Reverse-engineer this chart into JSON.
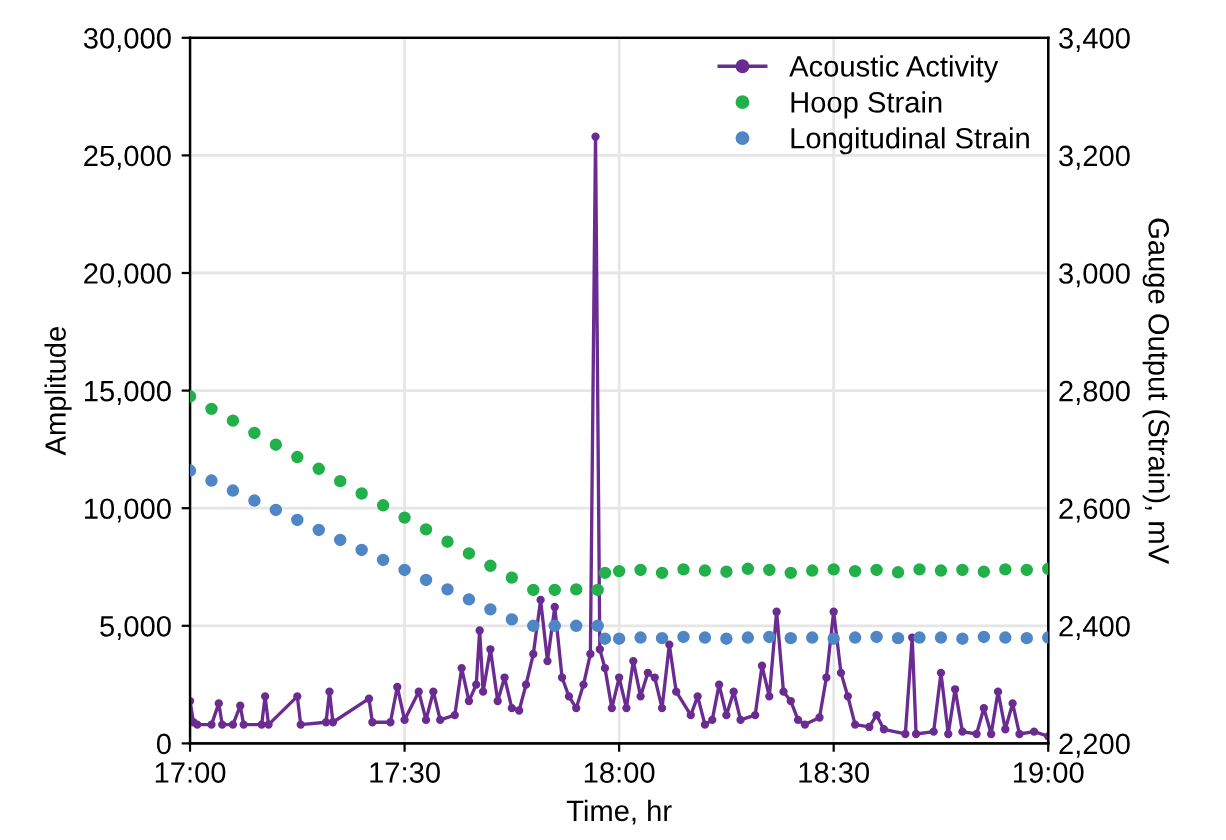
{
  "chart_data": {
    "type": "line",
    "xlabel": "Time, hr",
    "ylabel": "Amplitude",
    "y2label": "Gauge Output (Strain), mV",
    "xlim": [
      17,
      19
    ],
    "xticks": [
      {
        "value": 17,
        "label": "17:00"
      },
      {
        "value": 17.5,
        "label": "17:30"
      },
      {
        "value": 18,
        "label": "18:00"
      },
      {
        "value": 18.5,
        "label": "18:30"
      },
      {
        "value": 19,
        "label": "19:00"
      }
    ],
    "ylim": [
      0,
      30000
    ],
    "yticks": [
      {
        "value": 0,
        "label": "0"
      },
      {
        "value": 5000,
        "label": "5,000"
      },
      {
        "value": 10000,
        "label": "10,000"
      },
      {
        "value": 15000,
        "label": "15,000"
      },
      {
        "value": 20000,
        "label": "20,000"
      },
      {
        "value": 25000,
        "label": "25,000"
      },
      {
        "value": 30000,
        "label": "30,000"
      }
    ],
    "y2lim": [
      2200,
      3400
    ],
    "y2ticks": [
      {
        "value": 2200,
        "label": "2,200"
      },
      {
        "value": 2400,
        "label": "2,400"
      },
      {
        "value": 2600,
        "label": "2,600"
      },
      {
        "value": 2800,
        "label": "2,800"
      },
      {
        "value": 3000,
        "label": "3,000"
      },
      {
        "value": 3200,
        "label": "3,200"
      },
      {
        "value": 3400,
        "label": "3,400"
      }
    ],
    "grid": true,
    "legend": "top right",
    "series": [
      {
        "name": "Acoustic Activity",
        "marker": "circle",
        "color": "#6a2c91",
        "x": [
          17.0,
          17.008,
          17.017,
          17.05,
          17.067,
          17.075,
          17.1,
          17.117,
          17.125,
          17.167,
          17.175,
          17.183,
          17.25,
          17.258,
          17.317,
          17.325,
          17.333,
          17.417,
          17.425,
          17.467,
          17.483,
          17.5,
          17.533,
          17.55,
          17.567,
          17.583,
          17.617,
          17.633,
          17.65,
          17.667,
          17.675,
          17.683,
          17.7,
          17.717,
          17.733,
          17.75,
          17.767,
          17.783,
          17.8,
          17.817,
          17.833,
          17.85,
          17.867,
          17.883,
          17.9,
          17.917,
          17.933,
          17.945,
          17.955,
          17.967,
          17.983,
          18.0,
          18.017,
          18.033,
          18.05,
          18.067,
          18.083,
          18.1,
          18.117,
          18.133,
          18.167,
          18.183,
          18.2,
          18.217,
          18.233,
          18.25,
          18.267,
          18.283,
          18.317,
          18.333,
          18.35,
          18.367,
          18.383,
          18.4,
          18.417,
          18.433,
          18.467,
          18.483,
          18.5,
          18.517,
          18.533,
          18.55,
          18.583,
          18.6,
          18.617,
          18.667,
          18.683,
          18.692,
          18.733,
          18.75,
          18.767,
          18.783,
          18.8,
          18.833,
          18.85,
          18.867,
          18.883,
          18.9,
          18.917,
          18.933,
          18.967,
          19.0
        ],
        "values": [
          1800,
          900,
          800,
          800,
          1700,
          800,
          800,
          1600,
          800,
          800,
          2000,
          800,
          2000,
          800,
          900,
          2200,
          900,
          1900,
          900,
          900,
          2400,
          1000,
          2200,
          1000,
          2200,
          1000,
          1200,
          3200,
          1800,
          2500,
          4800,
          2200,
          4000,
          1800,
          2800,
          1500,
          1400,
          2500,
          3800,
          6100,
          3500,
          5800,
          2800,
          2000,
          1500,
          2500,
          3800,
          25800,
          4000,
          3200,
          1500,
          2800,
          1500,
          3500,
          2000,
          3000,
          2800,
          1500,
          4200,
          2200,
          1200,
          2000,
          800,
          1000,
          2500,
          1200,
          2200,
          1000,
          1200,
          3300,
          2000,
          5600,
          2200,
          1800,
          1000,
          800,
          1100,
          2800,
          5600,
          3000,
          2000,
          800,
          700,
          1200,
          600,
          400,
          4500,
          400,
          500,
          3000,
          400,
          2300,
          500,
          400,
          1500,
          400,
          2200,
          600,
          1700,
          400,
          500,
          300
        ]
      },
      {
        "name": "Hoop Strain",
        "type": "scatter",
        "axis": "y2",
        "marker": "circle",
        "color": "#22b04b",
        "x": [
          17.0,
          17.05,
          17.1,
          17.15,
          17.2,
          17.25,
          17.3,
          17.35,
          17.4,
          17.45,
          17.5,
          17.55,
          17.6,
          17.65,
          17.7,
          17.75,
          17.8,
          17.85,
          17.9,
          17.95,
          17.967,
          18.0,
          18.05,
          18.1,
          18.15,
          18.2,
          18.25,
          18.3,
          18.35,
          18.4,
          18.45,
          18.5,
          18.55,
          18.6,
          18.65,
          18.7,
          18.75,
          18.8,
          18.85,
          18.9,
          18.95,
          19.0
        ],
        "values": [
          2790,
          2769,
          2749,
          2728,
          2708,
          2687,
          2667,
          2646,
          2625,
          2605,
          2584,
          2564,
          2543,
          2523,
          2502,
          2482,
          2461,
          2461,
          2462,
          2461,
          2490,
          2493,
          2495,
          2490,
          2496,
          2494,
          2492,
          2497,
          2495,
          2490,
          2494,
          2496,
          2493,
          2495,
          2491,
          2496,
          2494,
          2495,
          2492,
          2496,
          2495,
          2497
        ]
      },
      {
        "name": "Longitudinal Strain",
        "type": "scatter",
        "axis": "y2",
        "marker": "circle",
        "color": "#4f86c6",
        "x": [
          17.0,
          17.05,
          17.1,
          17.15,
          17.2,
          17.25,
          17.3,
          17.35,
          17.4,
          17.45,
          17.5,
          17.55,
          17.6,
          17.65,
          17.7,
          17.75,
          17.8,
          17.85,
          17.9,
          17.95,
          17.967,
          18.0,
          18.05,
          18.1,
          18.15,
          18.2,
          18.25,
          18.3,
          18.35,
          18.4,
          18.45,
          18.5,
          18.55,
          18.6,
          18.65,
          18.7,
          18.75,
          18.8,
          18.85,
          18.9,
          18.95,
          19.0
        ],
        "values": [
          2664,
          2647,
          2630,
          2613,
          2597,
          2580,
          2563,
          2546,
          2529,
          2512,
          2495,
          2478,
          2462,
          2445,
          2428,
          2411,
          2400,
          2400,
          2400,
          2400,
          2378,
          2378,
          2380,
          2379,
          2381,
          2380,
          2378,
          2380,
          2381,
          2379,
          2380,
          2378,
          2380,
          2381,
          2379,
          2380,
          2380,
          2378,
          2381,
          2380,
          2379,
          2380
        ]
      }
    ]
  }
}
